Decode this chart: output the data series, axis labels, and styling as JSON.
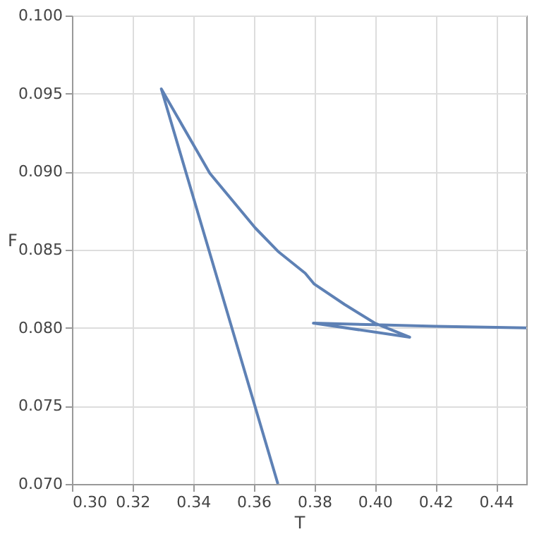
{
  "chart_data": {
    "type": "line",
    "xlabel": "T",
    "ylabel": "F",
    "x": [
      0.368,
      0.3295,
      0.3455,
      0.3605,
      0.368,
      0.377,
      0.38,
      0.39,
      0.4,
      0.4115,
      0.3797,
      0.4,
      0.42,
      0.45
    ],
    "series": [
      {
        "color": "#5e81b5",
        "values": [
          0.07,
          0.0953,
          0.0899,
          0.0864,
          0.0849,
          0.0835,
          0.0828,
          0.0815,
          0.0803,
          0.0794,
          0.0803,
          0.0802,
          0.0801,
          0.08
        ]
      }
    ],
    "xlim": [
      0.3,
      0.45
    ],
    "ylim": [
      0.07,
      0.1
    ],
    "xticks": [
      {
        "value": 0.3,
        "label": "0.30"
      },
      0.32,
      0.34,
      0.36,
      0.38,
      {
        "value": 0.4,
        "label": "0.40"
      },
      0.42,
      0.44
    ],
    "yticks": [
      {
        "value": 0.07,
        "label": "0.070"
      },
      0.075,
      {
        "value": 0.08,
        "label": "0.080"
      },
      0.085,
      {
        "value": 0.09,
        "label": "0.090"
      },
      0.095,
      {
        "value": 0.1,
        "label": "0.100"
      }
    ],
    "grid": true,
    "marker": "none",
    "line_style": "solid"
  }
}
